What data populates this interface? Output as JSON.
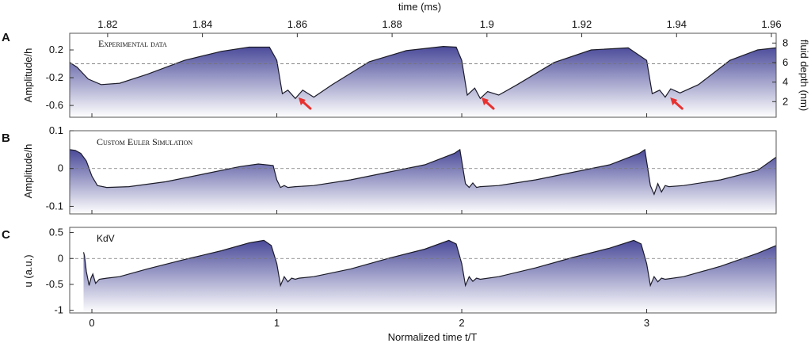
{
  "chart_data": [
    {
      "type": "area",
      "panel_letter": "A",
      "title": "Experimental data",
      "title_style": "small-caps",
      "top_axis_label": "time (ms)",
      "top_ticks": [
        "1.82",
        "1.84",
        "1.86",
        "1.88",
        "1.9",
        "1.92",
        "1.94",
        "1.96"
      ],
      "top_tick_values": [
        1.82,
        1.84,
        1.86,
        1.88,
        1.9,
        1.92,
        1.94,
        1.96
      ],
      "top_xlim": [
        1.812,
        1.961
      ],
      "ylabel": "Amplitude/h",
      "yticks": [
        "0.2",
        "-0.2",
        "-0.6"
      ],
      "ytick_values": [
        0.2,
        -0.2,
        -0.6
      ],
      "ylim": [
        -0.77,
        0.44
      ],
      "right_ylabel": "fluid depth (nm)",
      "right_ticks": [
        "8",
        "6",
        "4",
        "2"
      ],
      "right_tick_values": [
        8,
        6,
        4,
        2
      ],
      "right_ylim": [
        0.4,
        9.0
      ],
      "zero_line": -0.0,
      "x": [
        -0.12,
        -0.08,
        -0.02,
        0.05,
        0.15,
        0.3,
        0.5,
        0.7,
        0.85,
        0.96,
        1.0,
        1.03,
        1.06,
        1.1,
        1.14,
        1.2,
        1.3,
        1.5,
        1.7,
        1.9,
        1.97,
        2.0,
        2.03,
        2.07,
        2.1,
        2.14,
        2.2,
        2.3,
        2.5,
        2.7,
        2.9,
        3.0,
        3.03,
        3.07,
        3.1,
        3.13,
        3.18,
        3.28,
        3.45,
        3.6,
        3.7
      ],
      "values": [
        0.02,
        -0.05,
        -0.22,
        -0.3,
        -0.28,
        -0.15,
        0.05,
        0.18,
        0.24,
        0.24,
        0.05,
        -0.43,
        -0.38,
        -0.5,
        -0.38,
        -0.48,
        -0.3,
        0.03,
        0.19,
        0.25,
        0.24,
        0.05,
        -0.45,
        -0.35,
        -0.5,
        -0.4,
        -0.45,
        -0.3,
        0.02,
        0.2,
        0.23,
        0.05,
        -0.43,
        -0.38,
        -0.48,
        -0.36,
        -0.42,
        -0.3,
        0.05,
        0.2,
        0.23
      ],
      "annotations": [
        {
          "type": "arrow",
          "x": 1.13,
          "y": -0.53,
          "color": "#e8312f"
        },
        {
          "type": "arrow",
          "x": 2.12,
          "y": -0.53,
          "color": "#e8312f"
        },
        {
          "type": "arrow",
          "x": 3.14,
          "y": -0.53,
          "color": "#e8312f"
        }
      ]
    },
    {
      "type": "area",
      "panel_letter": "B",
      "title": "Custom Euler Simulation",
      "title_style": "small-caps",
      "ylabel": "Amplitude/h",
      "yticks": [
        "0.1",
        "0",
        "-0.1"
      ],
      "ytick_values": [
        0.1,
        0.0,
        -0.1
      ],
      "ylim": [
        -0.12,
        0.1
      ],
      "zero_line": 0.0,
      "x": [
        -0.12,
        -0.09,
        -0.06,
        -0.03,
        0.0,
        0.03,
        0.08,
        0.2,
        0.4,
        0.6,
        0.8,
        0.9,
        0.98,
        1.0,
        1.02,
        1.04,
        1.06,
        1.1,
        1.2,
        1.4,
        1.6,
        1.8,
        1.96,
        1.99,
        2.02,
        2.04,
        2.06,
        2.08,
        2.1,
        2.2,
        2.4,
        2.6,
        2.8,
        2.96,
        2.99,
        3.02,
        3.04,
        3.06,
        3.08,
        3.1,
        3.12,
        3.2,
        3.4,
        3.6,
        3.7
      ],
      "values": [
        0.05,
        0.048,
        0.04,
        0.02,
        -0.02,
        -0.045,
        -0.05,
        -0.048,
        -0.035,
        -0.015,
        0.005,
        0.012,
        0.008,
        -0.03,
        -0.05,
        -0.045,
        -0.05,
        -0.048,
        -0.045,
        -0.03,
        -0.01,
        0.01,
        0.04,
        0.05,
        -0.04,
        -0.05,
        -0.038,
        -0.05,
        -0.048,
        -0.045,
        -0.03,
        -0.01,
        0.01,
        0.04,
        0.05,
        -0.045,
        -0.068,
        -0.04,
        -0.062,
        -0.045,
        -0.048,
        -0.045,
        -0.03,
        -0.005,
        0.03
      ]
    },
    {
      "type": "area",
      "panel_letter": "C",
      "title": "KdV",
      "title_style": "normal",
      "ylabel": "u (a.u.)",
      "xlabel": "Normalized time t/T",
      "xticks": [
        "0",
        "1",
        "2",
        "3"
      ],
      "xtick_values": [
        0,
        1,
        2,
        3
      ],
      "xlim": [
        -0.12,
        3.7
      ],
      "yticks": [
        "0.5",
        "0",
        "-0.5",
        "-1"
      ],
      "ytick_values": [
        0.5,
        0.0,
        -0.5,
        -1.0
      ],
      "ylim": [
        -1.05,
        0.6
      ],
      "zero_line": 0.0,
      "x": [
        -0.045,
        -0.04,
        -0.03,
        -0.015,
        -0.005,
        0.005,
        0.02,
        0.04,
        0.08,
        0.15,
        0.3,
        0.5,
        0.7,
        0.85,
        0.93,
        0.97,
        1.0,
        1.02,
        1.04,
        1.06,
        1.08,
        1.1,
        1.12,
        1.2,
        1.4,
        1.6,
        1.8,
        1.93,
        1.97,
        2.0,
        2.02,
        2.04,
        2.06,
        2.08,
        2.1,
        2.2,
        2.4,
        2.6,
        2.8,
        2.93,
        2.97,
        3.0,
        3.02,
        3.04,
        3.06,
        3.08,
        3.1,
        3.2,
        3.4,
        3.6,
        3.7
      ],
      "values": [
        0.12,
        0.05,
        -0.25,
        -0.52,
        -0.38,
        -0.3,
        -0.48,
        -0.4,
        -0.38,
        -0.35,
        -0.2,
        -0.02,
        0.15,
        0.3,
        0.35,
        0.25,
        -0.1,
        -0.52,
        -0.35,
        -0.45,
        -0.38,
        -0.4,
        -0.38,
        -0.35,
        -0.2,
        0.0,
        0.18,
        0.35,
        0.28,
        -0.1,
        -0.52,
        -0.35,
        -0.44,
        -0.38,
        -0.4,
        -0.35,
        -0.18,
        0.02,
        0.2,
        0.35,
        0.28,
        -0.1,
        -0.52,
        -0.35,
        -0.45,
        -0.38,
        -0.4,
        -0.35,
        -0.15,
        0.1,
        0.25
      ]
    }
  ],
  "colors": {
    "fill_top": "#4a4a9a",
    "fill_bottom": "#ffffff",
    "line": "#1c1c2a",
    "arrow": "#e8312f",
    "zero_line": "#777777",
    "frame": "#555555"
  }
}
